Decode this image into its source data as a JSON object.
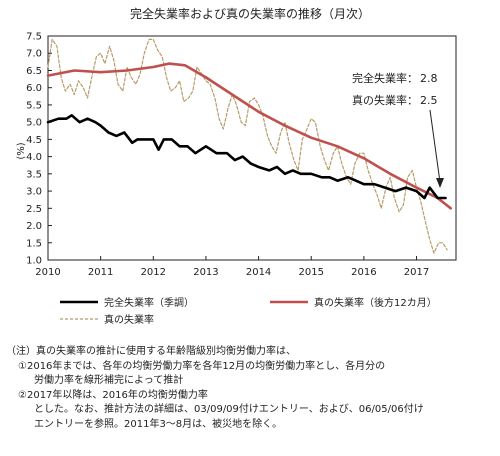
{
  "chart_data": {
    "type": "line",
    "title": "完全失業率および真の失業率の推移（月次）",
    "ylabel": "(%)",
    "ylim": [
      1.0,
      7.5
    ],
    "yticks": [
      "7.5",
      "7.0",
      "6.5",
      "6.0",
      "5.5",
      "5.0",
      "4.5",
      "4.0",
      "3.5",
      "3.0",
      "2.5",
      "2.0",
      "1.5",
      "1.0"
    ],
    "xlim": [
      2010.0,
      2017.75
    ],
    "xticks": [
      "2010",
      "2011",
      "2012",
      "2013",
      "2014",
      "2015",
      "2016",
      "2017"
    ],
    "grid": false,
    "legend_position": "bottom",
    "series": [
      {
        "name": "完全失業率（季調）",
        "color": "#000000",
        "style": "solid-thick",
        "x": [
          2010.0,
          2010.2,
          2010.35,
          2010.45,
          2010.6,
          2010.75,
          2010.9,
          2011.0,
          2011.15,
          2011.3,
          2011.45,
          2011.6,
          2011.7,
          2011.85,
          2012.0,
          2012.1,
          2012.2,
          2012.35,
          2012.5,
          2012.65,
          2012.8,
          2013.0,
          2013.2,
          2013.4,
          2013.55,
          2013.7,
          2013.85,
          2014.0,
          2014.2,
          2014.35,
          2014.5,
          2014.65,
          2014.8,
          2015.0,
          2015.2,
          2015.35,
          2015.5,
          2015.7,
          2015.85,
          2016.0,
          2016.2,
          2016.4,
          2016.6,
          2016.8,
          2017.0,
          2017.15,
          2017.25,
          2017.4,
          2017.55
        ],
        "y": [
          5.0,
          5.1,
          5.1,
          5.2,
          5.0,
          5.1,
          5.0,
          4.9,
          4.7,
          4.6,
          4.7,
          4.4,
          4.5,
          4.5,
          4.5,
          4.2,
          4.5,
          4.5,
          4.3,
          4.3,
          4.1,
          4.3,
          4.1,
          4.1,
          3.9,
          4.0,
          3.8,
          3.7,
          3.6,
          3.7,
          3.5,
          3.6,
          3.5,
          3.5,
          3.4,
          3.4,
          3.3,
          3.4,
          3.3,
          3.2,
          3.2,
          3.1,
          3.0,
          3.1,
          3.0,
          2.8,
          3.1,
          2.8,
          2.8
        ]
      },
      {
        "name": "真の失業率（後方12カ月）",
        "color": "#c0504d",
        "style": "solid-thick",
        "x": [
          2010.0,
          2010.5,
          2011.0,
          2011.5,
          2012.0,
          2012.3,
          2012.6,
          2013.0,
          2013.5,
          2014.0,
          2014.5,
          2015.0,
          2015.5,
          2016.0,
          2016.5,
          2017.0,
          2017.4,
          2017.65
        ],
        "y": [
          6.35,
          6.5,
          6.45,
          6.5,
          6.6,
          6.7,
          6.65,
          6.3,
          5.8,
          5.3,
          4.9,
          4.55,
          4.3,
          3.95,
          3.5,
          3.1,
          2.8,
          2.5
        ]
      },
      {
        "name": "真の失業率",
        "color": "#b89b6a",
        "style": "dashed",
        "x": [
          2010.0,
          2010.08,
          2010.17,
          2010.25,
          2010.33,
          2010.42,
          2010.5,
          2010.58,
          2010.67,
          2010.75,
          2010.83,
          2010.92,
          2011.0,
          2011.08,
          2011.17,
          2011.25,
          2011.33,
          2011.42,
          2011.5,
          2011.58,
          2011.67,
          2011.75,
          2011.83,
          2011.92,
          2012.0,
          2012.08,
          2012.17,
          2012.25,
          2012.33,
          2012.42,
          2012.5,
          2012.58,
          2012.67,
          2012.75,
          2012.83,
          2012.92,
          2013.0,
          2013.08,
          2013.17,
          2013.25,
          2013.33,
          2013.42,
          2013.5,
          2013.58,
          2013.67,
          2013.75,
          2013.83,
          2013.92,
          2014.0,
          2014.08,
          2014.17,
          2014.25,
          2014.33,
          2014.42,
          2014.5,
          2014.58,
          2014.67,
          2014.75,
          2014.83,
          2014.92,
          2015.0,
          2015.08,
          2015.17,
          2015.25,
          2015.33,
          2015.42,
          2015.5,
          2015.58,
          2015.67,
          2015.75,
          2015.83,
          2015.92,
          2016.0,
          2016.08,
          2016.17,
          2016.25,
          2016.33,
          2016.42,
          2016.5,
          2016.58,
          2016.67,
          2016.75,
          2016.83,
          2016.92,
          2017.0,
          2017.08,
          2017.17,
          2017.25,
          2017.33,
          2017.42,
          2017.5,
          2017.58
        ],
        "y": [
          6.6,
          7.4,
          7.2,
          6.3,
          5.9,
          6.1,
          5.8,
          6.2,
          6.0,
          5.7,
          6.3,
          6.9,
          7.0,
          6.7,
          7.2,
          6.8,
          6.1,
          5.9,
          6.6,
          6.3,
          6.1,
          6.4,
          7.0,
          7.4,
          7.4,
          7.1,
          6.9,
          6.3,
          5.9,
          6.0,
          6.2,
          5.6,
          5.7,
          5.9,
          6.6,
          6.4,
          6.2,
          6.1,
          5.7,
          5.1,
          4.8,
          5.4,
          5.8,
          5.5,
          5.0,
          4.9,
          5.6,
          5.7,
          5.5,
          5.2,
          4.6,
          4.3,
          4.1,
          4.7,
          5.0,
          4.4,
          3.9,
          3.6,
          4.5,
          4.8,
          5.1,
          5.0,
          4.3,
          3.9,
          3.6,
          4.1,
          4.3,
          3.8,
          3.4,
          3.2,
          3.8,
          4.1,
          4.1,
          3.6,
          3.2,
          2.9,
          2.5,
          3.1,
          3.4,
          2.8,
          2.4,
          2.6,
          3.4,
          3.6,
          3.1,
          2.7,
          2.1,
          1.6,
          1.2,
          1.5,
          1.5,
          1.3
        ]
      }
    ],
    "annotations": [
      {
        "label": "完全失業率",
        "value": "2.8"
      },
      {
        "label": "真の失業率",
        "value": "2.5"
      }
    ]
  },
  "notes": [
    "（注）真の失業率の推計に使用する年齢階級別均衡労働力率は、",
    "①2016年までは、各年の均衡労働力率を各年12月の均衡労働力率とし、各月分の",
    "労働力率を線形補完によって推計",
    "②2017年以降は、2016年の均衡労働力率",
    "とした。なお、推計方法の詳細は、03/09/09付けエントリー、および、06/05/06付け",
    "エントリーを参照。2011年3～8月は、被災地を除く。"
  ]
}
